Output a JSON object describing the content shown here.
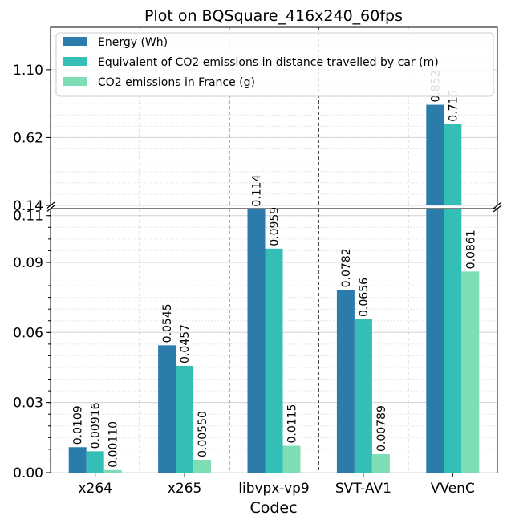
{
  "chart_data": {
    "type": "bar",
    "title": "Plot on BQSquare_416x240_60fps",
    "xlabel": "Codec",
    "ylabel": "",
    "categories": [
      "x264",
      "x265",
      "libvpx-vp9",
      "SVT-AV1",
      "VVenC"
    ],
    "series": [
      {
        "name": "Energy (Wh)",
        "color": "#2b7bab",
        "values": [
          0.0109,
          0.0545,
          0.114,
          0.0782,
          0.852
        ],
        "labels": [
          "0.0109",
          "0.0545",
          "0.114",
          "0.0782",
          "0.852"
        ]
      },
      {
        "name": "Equivalent of CO2 emissions in distance travelled by car (m)",
        "color": "#34bfb6",
        "values": [
          0.00916,
          0.0457,
          0.0959,
          0.0656,
          0.715
        ],
        "labels": [
          "0.00916",
          "0.0457",
          "0.0959",
          "0.0656",
          "0.715"
        ]
      },
      {
        "name": "CO2 emissions in France (g)",
        "color": "#7ddeb6",
        "values": [
          0.0011,
          0.0055,
          0.0115,
          0.00789,
          0.0861
        ],
        "labels": [
          "0.00110",
          "0.00550",
          "0.0115",
          "0.00789",
          "0.0861"
        ]
      }
    ],
    "y_axis_broken": true,
    "lower_axis": {
      "ylim": [
        0,
        0.113
      ],
      "ticks": [
        0.0,
        0.03,
        0.06,
        0.09,
        0.11
      ],
      "tick_labels": [
        "0.00",
        "0.03",
        "0.06",
        "0.09",
        "0.11"
      ]
    },
    "upper_axis": {
      "ylim": [
        0.14,
        1.4
      ],
      "ticks": [
        0.14,
        0.62,
        1.1
      ],
      "tick_labels": [
        "0.14",
        "0.62",
        "1.10"
      ]
    },
    "grid": true,
    "legend_position": "top"
  }
}
